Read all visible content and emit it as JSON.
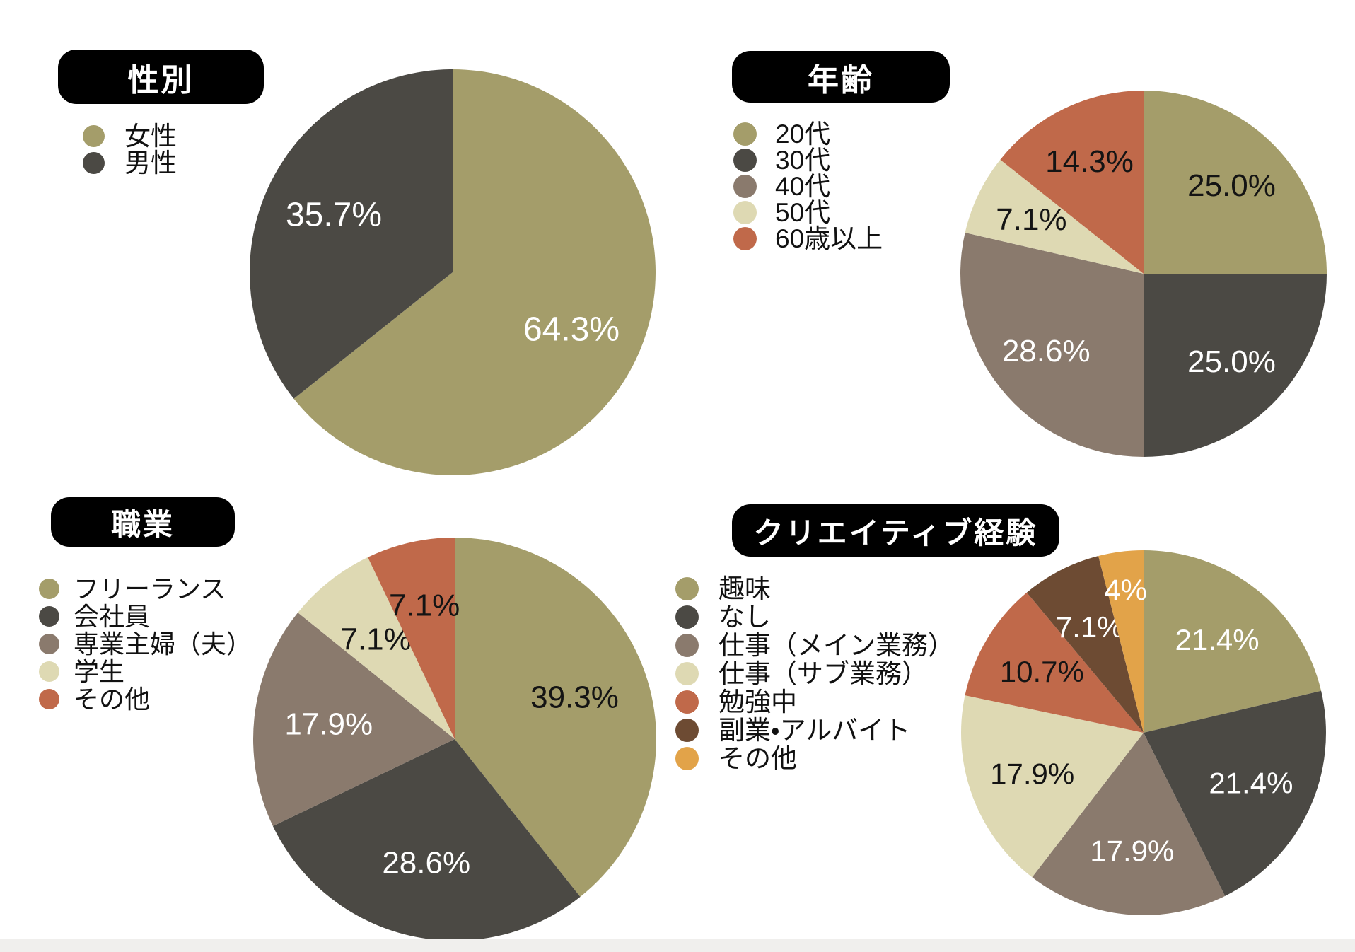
{
  "page": {
    "background": "#ffffff",
    "bottom_band_color": "#f0efed",
    "title_pill_background": "#000000",
    "title_text_color": "#ffffff",
    "legend_text_color": "#111111"
  },
  "chart_data": [
    {
      "type": "pie",
      "id": "gender",
      "title": "性別",
      "direction": "clockwise",
      "start_angle": "12-oclock",
      "legend_position": "left-of-pie",
      "slices": [
        {
          "label": "女性",
          "value": 64.3,
          "display": "64.3%",
          "color": "#a49d6a",
          "label_color": "#ffffff"
        },
        {
          "label": "男性",
          "value": 35.7,
          "display": "35.7%",
          "color": "#4b4944",
          "label_color": "#ffffff"
        }
      ]
    },
    {
      "type": "pie",
      "id": "age",
      "title": "年齢",
      "direction": "clockwise",
      "start_angle": "12-oclock",
      "legend_position": "left-of-pie",
      "slices": [
        {
          "label": "20代",
          "value": 25.0,
          "display": "25.0%",
          "color": "#a49d6a",
          "label_color": "#141414"
        },
        {
          "label": "30代",
          "value": 25.0,
          "display": "25.0%",
          "color": "#4b4944",
          "label_color": "#ffffff"
        },
        {
          "label": "40代",
          "value": 28.6,
          "display": "28.6%",
          "color": "#8a7a6d",
          "label_color": "#ffffff"
        },
        {
          "label": "50代",
          "value": 7.1,
          "display": "7.1%",
          "color": "#ded9b3",
          "label_color": "#141414"
        },
        {
          "label": "60歳以上",
          "value": 14.3,
          "display": "14.3%",
          "color": "#c0694a",
          "label_color": "#141414"
        }
      ]
    },
    {
      "type": "pie",
      "id": "occupation",
      "title": "職業",
      "direction": "clockwise",
      "start_angle": "12-oclock",
      "legend_position": "left-of-pie",
      "slices": [
        {
          "label": "フリーランス",
          "value": 39.3,
          "display": "39.3%",
          "color": "#a49d6a",
          "label_color": "#141414"
        },
        {
          "label": "会社員",
          "value": 28.6,
          "display": "28.6%",
          "color": "#4b4944",
          "label_color": "#ffffff"
        },
        {
          "label": "専業主婦（夫）",
          "value": 17.9,
          "display": "17.9%",
          "color": "#8a7a6d",
          "label_color": "#ffffff"
        },
        {
          "label": "学生",
          "value": 7.1,
          "display": "7.1%",
          "color": "#ded9b3",
          "label_color": "#141414"
        },
        {
          "label": "その他",
          "value": 7.1,
          "display": "7.1%",
          "color": "#c0694a",
          "label_color": "#141414",
          "label_d": 0.68
        }
      ]
    },
    {
      "type": "pie",
      "id": "creative-experience",
      "title": "クリエイティブ経験",
      "direction": "clockwise",
      "start_angle": "12-oclock",
      "legend_position": "left-of-pie",
      "slices": [
        {
          "label": "趣味",
          "value": 21.4,
          "display": "21.4%",
          "color": "#a49d6a",
          "label_color": "#ffffff"
        },
        {
          "label": "なし",
          "value": 21.4,
          "display": "21.4%",
          "color": "#4b4944",
          "label_color": "#ffffff"
        },
        {
          "label": "仕事（メイン業務）",
          "value": 17.9,
          "display": "17.9%",
          "color": "#8a7a6d",
          "label_color": "#ffffff"
        },
        {
          "label": "仕事（サブ業務）",
          "value": 17.9,
          "display": "17.9%",
          "color": "#ded9b3",
          "label_color": "#141414"
        },
        {
          "label": "勉強中",
          "value": 10.7,
          "display": "10.7%",
          "color": "#c0694a",
          "label_color": "#141414"
        },
        {
          "label": "副業・アルバイト",
          "value": 7.1,
          "display": "7.1%",
          "color": "#6d4b33",
          "label_color": "#ffffff"
        },
        {
          "label": "その他",
          "value": 4,
          "display": "4%",
          "color": "#e2a349",
          "label_color": "#ffffff",
          "label_d": 0.79
        }
      ]
    }
  ]
}
